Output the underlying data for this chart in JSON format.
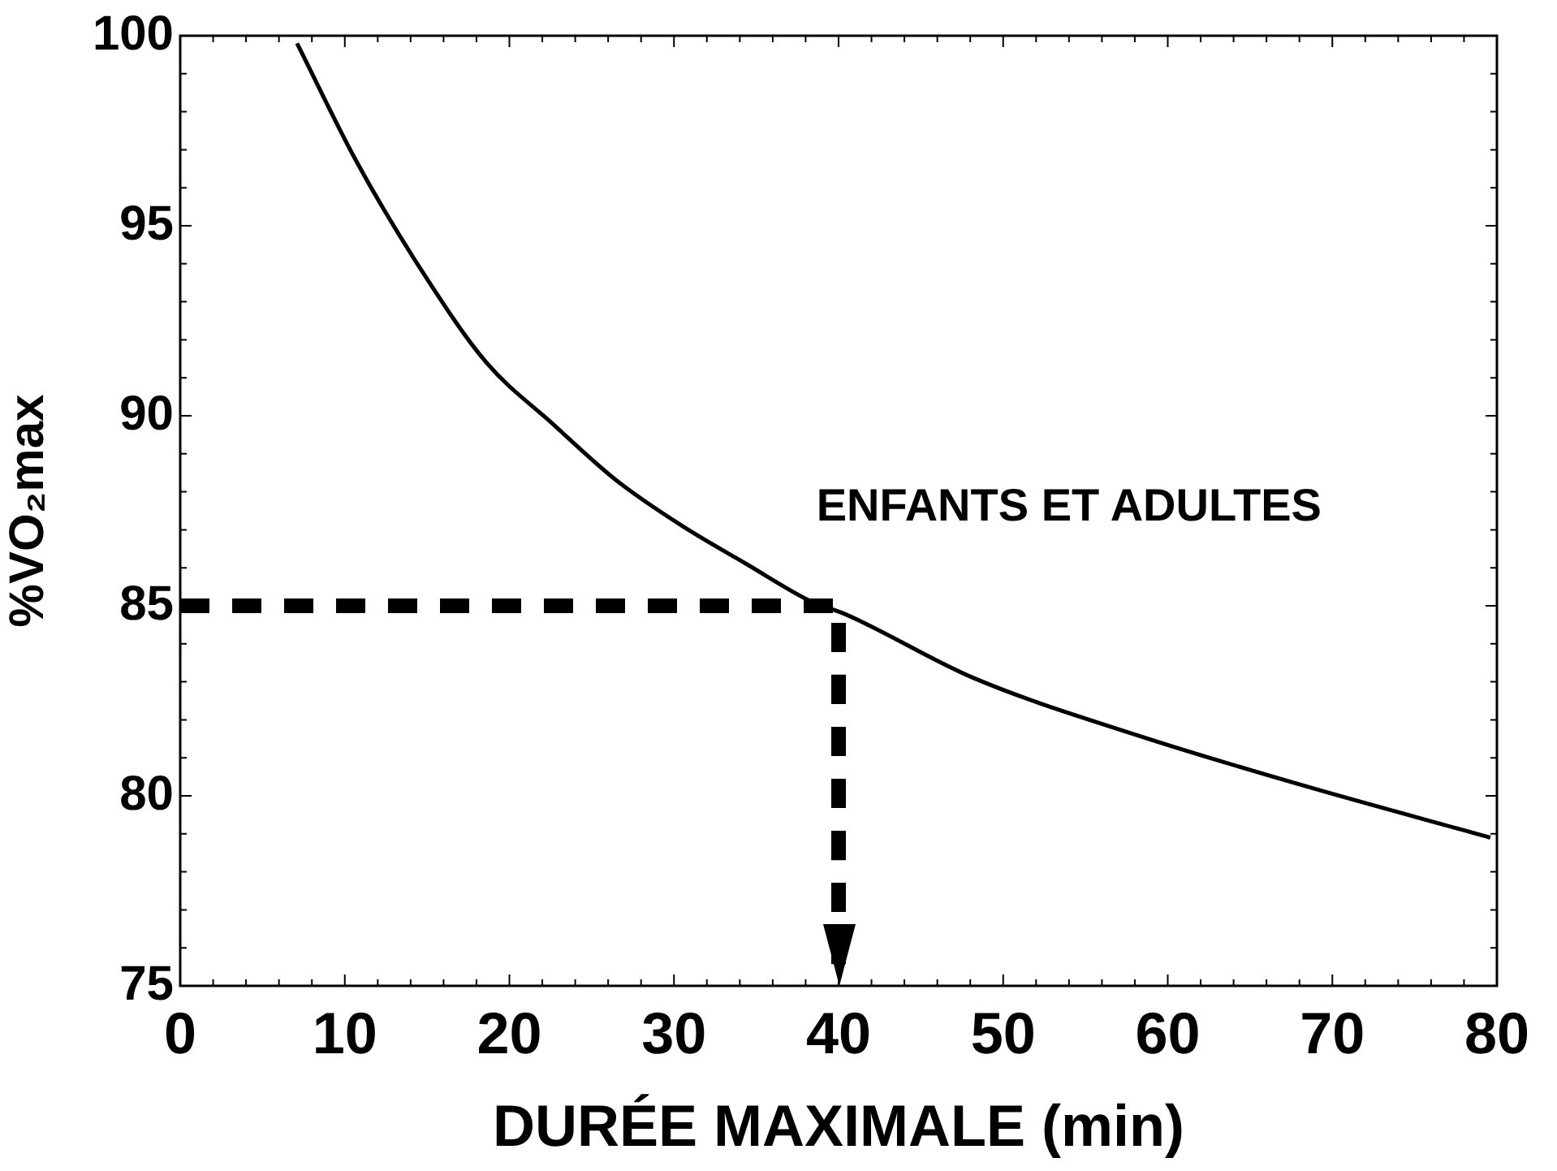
{
  "chart_data": {
    "type": "line",
    "xlabel": "DURÉE MAXIMALE (min)",
    "ylabel": "%VO₂max",
    "xlim": [
      0,
      80
    ],
    "xticks": [
      0,
      10,
      20,
      30,
      40,
      50,
      60,
      70,
      80
    ],
    "ylim": [
      75,
      100
    ],
    "yticks": [
      75,
      80,
      85,
      90,
      95,
      100
    ],
    "series": [
      {
        "color": "#000000",
        "line_style": "solid",
        "x": [
          7.1,
          10.7,
          14.7,
          18.6,
          22.6,
          26.5,
          30.5,
          34.4,
          38.4,
          40.3,
          48.2,
          58.1,
          68,
          79.6
        ],
        "values": [
          99.8,
          96.7,
          93.8,
          91.4,
          89.8,
          88.3,
          87.1,
          86.1,
          85.1,
          84.8,
          83.1,
          81.6,
          80.3,
          78.9
        ]
      },
      {
        "color": "#000000",
        "line_style": "dashed",
        "x": [
          0,
          40,
          40
        ],
        "values": [
          85,
          85,
          75
        ]
      }
    ],
    "annotations": [
      "ENFANTS ET ADULTES"
    ],
    "legend": false,
    "grid": false,
    "marker": "none"
  }
}
